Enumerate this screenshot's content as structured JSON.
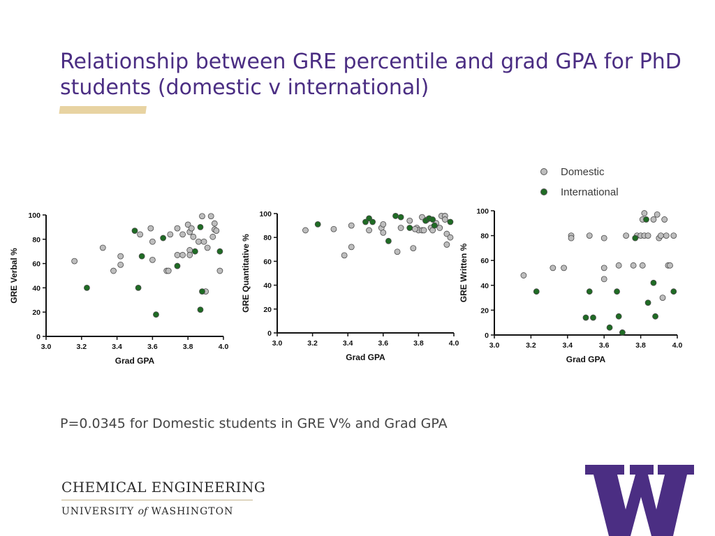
{
  "title": "Relationship between GRE percentile and grad GPA for PhD students (domestic v international)",
  "legend": {
    "domestic": "Domestic",
    "international": "International"
  },
  "colors": {
    "title": "#4b2e83",
    "accent_bar": "#e8d3a2",
    "domestic": "#bdbdbd",
    "international": "#1f6b24",
    "logo": "#4b2e83"
  },
  "footnote": "P=0.0345 for Domestic students in GRE V% and Grad GPA",
  "department": {
    "name": "CHEMICAL ENGINEERING",
    "university_pre": "UNIVERSITY ",
    "university_of": "of",
    "university_post": " WASHINGTON"
  },
  "logo_icon": "uw-w-logo-icon",
  "chart_data": [
    {
      "type": "scatter",
      "xlabel": "Grad GPA",
      "ylabel": "GRE Verbal %",
      "xlim": [
        3.0,
        4.0
      ],
      "ylim": [
        0,
        100
      ],
      "xticks": [
        "3.0",
        "3.2",
        "3.4",
        "3.6",
        "3.8",
        "4.0"
      ],
      "yticks": [
        "0",
        "20",
        "40",
        "60",
        "80",
        "100"
      ],
      "series": [
        {
          "name": "Domestic",
          "points": [
            [
              3.16,
              62
            ],
            [
              3.32,
              73
            ],
            [
              3.38,
              54
            ],
            [
              3.42,
              66
            ],
            [
              3.42,
              59
            ],
            [
              3.53,
              84
            ],
            [
              3.59,
              89
            ],
            [
              3.6,
              63
            ],
            [
              3.6,
              78
            ],
            [
              3.68,
              54
            ],
            [
              3.69,
              54
            ],
            [
              3.7,
              84
            ],
            [
              3.74,
              89
            ],
            [
              3.74,
              67
            ],
            [
              3.77,
              84
            ],
            [
              3.77,
              67
            ],
            [
              3.8,
              92
            ],
            [
              3.81,
              71
            ],
            [
              3.81,
              67
            ],
            [
              3.81,
              86
            ],
            [
              3.82,
              89
            ],
            [
              3.83,
              82
            ],
            [
              3.86,
              78
            ],
            [
              3.88,
              99
            ],
            [
              3.89,
              78
            ],
            [
              3.9,
              37
            ],
            [
              3.91,
              73
            ],
            [
              3.93,
              99
            ],
            [
              3.94,
              82
            ],
            [
              3.95,
              93
            ],
            [
              3.95,
              88
            ],
            [
              3.96,
              87
            ],
            [
              3.98,
              54
            ]
          ]
        },
        {
          "name": "International",
          "points": [
            [
              3.23,
              40
            ],
            [
              3.5,
              87
            ],
            [
              3.52,
              40
            ],
            [
              3.54,
              66
            ],
            [
              3.62,
              18
            ],
            [
              3.66,
              81
            ],
            [
              3.74,
              58
            ],
            [
              3.84,
              70
            ],
            [
              3.87,
              22
            ],
            [
              3.87,
              90
            ],
            [
              3.88,
              37
            ],
            [
              3.98,
              70
            ]
          ]
        }
      ]
    },
    {
      "type": "scatter",
      "xlabel": "Grad GPA",
      "ylabel": "GRE Quantitative %",
      "xlim": [
        3.0,
        4.0
      ],
      "ylim": [
        0,
        100
      ],
      "xticks": [
        "3.0",
        "3.2",
        "3.4",
        "3.6",
        "3.8",
        "4.0"
      ],
      "yticks": [
        "0",
        "20",
        "40",
        "60",
        "80",
        "100"
      ],
      "series": [
        {
          "name": "Domestic",
          "points": [
            [
              3.16,
              86
            ],
            [
              3.32,
              87
            ],
            [
              3.38,
              65
            ],
            [
              3.42,
              90
            ],
            [
              3.42,
              72
            ],
            [
              3.52,
              86
            ],
            [
              3.59,
              88
            ],
            [
              3.6,
              91
            ],
            [
              3.6,
              84
            ],
            [
              3.68,
              68
            ],
            [
              3.7,
              88
            ],
            [
              3.75,
              94
            ],
            [
              3.77,
              71
            ],
            [
              3.79,
              88
            ],
            [
              3.8,
              86
            ],
            [
              3.82,
              86
            ],
            [
              3.83,
              86
            ],
            [
              3.85,
              95
            ],
            [
              3.87,
              88
            ],
            [
              3.9,
              92
            ],
            [
              3.93,
              98
            ],
            [
              3.95,
              98
            ],
            [
              3.95,
              95
            ],
            [
              3.96,
              83
            ],
            [
              3.96,
              74
            ],
            [
              3.98,
              80
            ],
            [
              3.82,
              97
            ],
            [
              3.78,
              87
            ],
            [
              3.92,
              88
            ],
            [
              3.88,
              86
            ]
          ]
        },
        {
          "name": "International",
          "points": [
            [
              3.23,
              91
            ],
            [
              3.5,
              93
            ],
            [
              3.52,
              96
            ],
            [
              3.54,
              93
            ],
            [
              3.63,
              77
            ],
            [
              3.67,
              98
            ],
            [
              3.7,
              97
            ],
            [
              3.75,
              88
            ],
            [
              3.84,
              94
            ],
            [
              3.86,
              96
            ],
            [
              3.89,
              90
            ],
            [
              3.98,
              93
            ],
            [
              3.88,
              95
            ]
          ]
        }
      ]
    },
    {
      "type": "scatter",
      "xlabel": "Grad GPA",
      "ylabel": "GRE Written %",
      "xlim": [
        3.0,
        4.0
      ],
      "ylim": [
        0,
        100
      ],
      "xticks": [
        "3.0",
        "3.2",
        "3.4",
        "3.6",
        "3.8",
        "4.0"
      ],
      "yticks": [
        "0",
        "20",
        "40",
        "60",
        "80",
        "100"
      ],
      "legend_position": "top-right",
      "series": [
        {
          "name": "Domestic",
          "points": [
            [
              3.16,
              48
            ],
            [
              3.32,
              54
            ],
            [
              3.38,
              54
            ],
            [
              3.42,
              80
            ],
            [
              3.42,
              78
            ],
            [
              3.52,
              80
            ],
            [
              3.6,
              78
            ],
            [
              3.6,
              54
            ],
            [
              3.6,
              45
            ],
            [
              3.68,
              56
            ],
            [
              3.72,
              80
            ],
            [
              3.76,
              56
            ],
            [
              3.78,
              80
            ],
            [
              3.8,
              80
            ],
            [
              3.81,
              56
            ],
            [
              3.81,
              93
            ],
            [
              3.82,
              98
            ],
            [
              3.82,
              80
            ],
            [
              3.84,
              80
            ],
            [
              3.87,
              93
            ],
            [
              3.89,
              97
            ],
            [
              3.9,
              78
            ],
            [
              3.91,
              80
            ],
            [
              3.92,
              30
            ],
            [
              3.93,
              93
            ],
            [
              3.94,
              80
            ],
            [
              3.95,
              56
            ],
            [
              3.96,
              56
            ],
            [
              3.98,
              80
            ]
          ]
        },
        {
          "name": "International",
          "points": [
            [
              3.23,
              35
            ],
            [
              3.5,
              14
            ],
            [
              3.52,
              35
            ],
            [
              3.54,
              14
            ],
            [
              3.63,
              6
            ],
            [
              3.67,
              35
            ],
            [
              3.68,
              15
            ],
            [
              3.7,
              2
            ],
            [
              3.77,
              78
            ],
            [
              3.83,
              93
            ],
            [
              3.84,
              26
            ],
            [
              3.87,
              42
            ],
            [
              3.88,
              15
            ],
            [
              3.98,
              35
            ]
          ]
        }
      ]
    }
  ]
}
